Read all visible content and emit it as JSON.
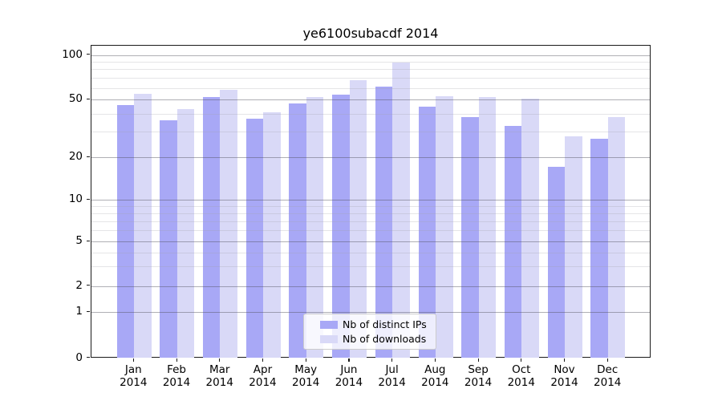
{
  "title": "ye6100subacdf 2014",
  "chart_data": {
    "type": "bar",
    "title": "ye6100subacdf 2014",
    "categories": [
      "Jan 2014",
      "Feb 2014",
      "Mar 2014",
      "Apr 2014",
      "May 2014",
      "Jun 2014",
      "Jul 2014",
      "Aug 2014",
      "Sep 2014",
      "Oct 2014",
      "Nov 2014",
      "Dec 2014"
    ],
    "months": [
      "Jan",
      "Feb",
      "Mar",
      "Apr",
      "May",
      "Jun",
      "Jul",
      "Aug",
      "Sep",
      "Oct",
      "Nov",
      "Dec"
    ],
    "year": "2014",
    "series": [
      {
        "name": "Nb of distinct IPs",
        "color": "#a8a8f6",
        "values": [
          46,
          36,
          52,
          37,
          47,
          54,
          61,
          45,
          38,
          33,
          17,
          27
        ]
      },
      {
        "name": "Nb of downloads",
        "color": "#d9d9f7",
        "values": [
          55,
          43,
          58,
          41,
          52,
          68,
          89,
          53,
          52,
          51,
          28,
          38
        ]
      }
    ],
    "yticks": [
      0,
      1,
      2,
      5,
      10,
      20,
      50,
      100
    ],
    "minor_gridlines": [
      3,
      4,
      6,
      7,
      8,
      9,
      30,
      40,
      60,
      70,
      80,
      90
    ],
    "scale": "symlog",
    "ylim": [
      0,
      115
    ],
    "xlabel": "",
    "ylabel": "",
    "grid": true,
    "legend_position": "lower center"
  },
  "colors": {
    "distinct_ips": "#a8a8f6",
    "downloads": "#d9d9f7",
    "grid_major": "#b0b0b5",
    "grid_minor": "#e2e2e6"
  }
}
